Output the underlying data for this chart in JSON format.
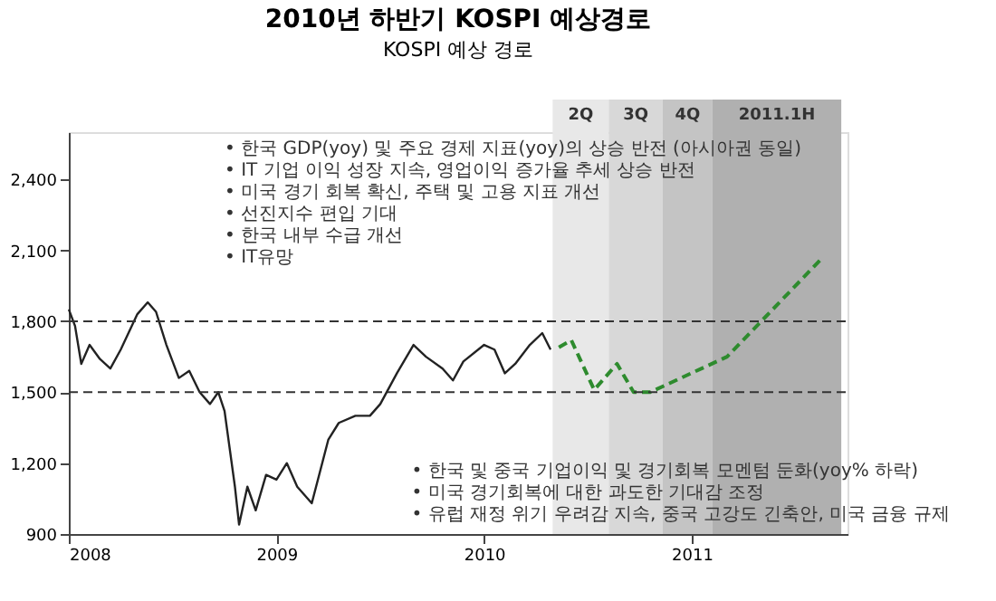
{
  "chart_data": {
    "type": "line",
    "title": "2010년 하반기 KOSPI 예상경로",
    "subtitle": "KOSPI 예상 경로",
    "series": [
      {
        "color": "#222222",
        "line_style": "solid",
        "x": [
          2008.0,
          2008.03,
          2008.06,
          2008.1,
          2008.15,
          2008.2,
          2008.25,
          2008.33,
          2008.38,
          2008.42,
          2008.47,
          2008.53,
          2008.58,
          2008.63,
          2008.68,
          2008.72,
          2008.75,
          2008.8,
          2008.82,
          2008.86,
          2008.9,
          2008.95,
          2009.0,
          2009.05,
          2009.1,
          2009.17,
          2009.25,
          2009.3,
          2009.38,
          2009.45,
          2009.5,
          2009.58,
          2009.66,
          2009.72,
          2009.8,
          2009.85,
          2009.9,
          2010.0,
          2010.05,
          2010.1,
          2010.15,
          2010.22,
          2010.28,
          2010.32
        ],
        "values": [
          1850,
          1780,
          1620,
          1700,
          1640,
          1600,
          1680,
          1830,
          1880,
          1840,
          1700,
          1560,
          1590,
          1500,
          1450,
          1500,
          1420,
          1100,
          940,
          1100,
          1000,
          1150,
          1130,
          1200,
          1100,
          1030,
          1300,
          1370,
          1400,
          1400,
          1450,
          1580,
          1700,
          1650,
          1600,
          1550,
          1630,
          1700,
          1680,
          1580,
          1620,
          1700,
          1750,
          1680
        ]
      },
      {
        "color": "#2e8b2e",
        "line_style": "dashed",
        "x": [
          2010.36,
          2010.42,
          2010.53,
          2010.64,
          2010.72,
          2010.8,
          2011.17,
          2011.62
        ],
        "values": [
          1690,
          1720,
          1510,
          1620,
          1500,
          1500,
          1650,
          2060
        ]
      }
    ],
    "xlim": [
      2008,
      2011.75
    ],
    "xticks": [
      2008,
      2009,
      2010,
      2011
    ],
    "ylim": [
      900,
      2600
    ],
    "yticks": [
      {
        "value": 900,
        "label": "900"
      },
      {
        "value": 1200,
        "label": "1,200"
      },
      {
        "value": 1500,
        "label": "1,500"
      },
      {
        "value": 1800,
        "label": "1,800"
      },
      {
        "value": 2100,
        "label": "2,100"
      },
      {
        "value": 2400,
        "label": "2,400"
      }
    ],
    "ref_lines": [
      {
        "axis": "y",
        "value": 1800,
        "color": "#333333",
        "line_style": "dashed"
      },
      {
        "axis": "y",
        "value": 1500,
        "color": "#333333",
        "line_style": "dashed"
      }
    ],
    "bands": [
      {
        "axis": "x",
        "from": 2010.33,
        "to": 2010.6,
        "label": "2Q",
        "color": "#e8e8e8"
      },
      {
        "axis": "x",
        "from": 2010.6,
        "to": 2010.86,
        "label": "3Q",
        "color": "#d8d8d8"
      },
      {
        "axis": "x",
        "from": 2010.86,
        "to": 2011.1,
        "label": "4Q",
        "color": "#c4c4c4"
      },
      {
        "axis": "x",
        "from": 2011.1,
        "to": 2011.72,
        "label": "2011.1H",
        "color": "#b0b0b0"
      }
    ],
    "annotations": [
      "• 한국 GDP(yoy) 및 주요 경제 지표(yoy)의 상승 반전 (아시아권 동일)",
      "• IT 기업 이익 성장 지속, 영업이익 증가율 추세 상승 반전",
      "• 미국 경기 회복 확신, 주택 및 고용 지표 개선",
      "• 선진지수 편입 기대",
      "• 한국 내부 수급 개선",
      "• IT유망",
      "• 한국 및 중국 기업이익 및 경기회복 모멘텀 둔화(yoy% 하락)",
      "• 미국 경기회복에 대한 과도한 기대감 조정",
      "• 유럽 재정 위기 우려감 지속, 중국 고강도 긴축안, 미국 금융 규제"
    ],
    "grid": false
  }
}
